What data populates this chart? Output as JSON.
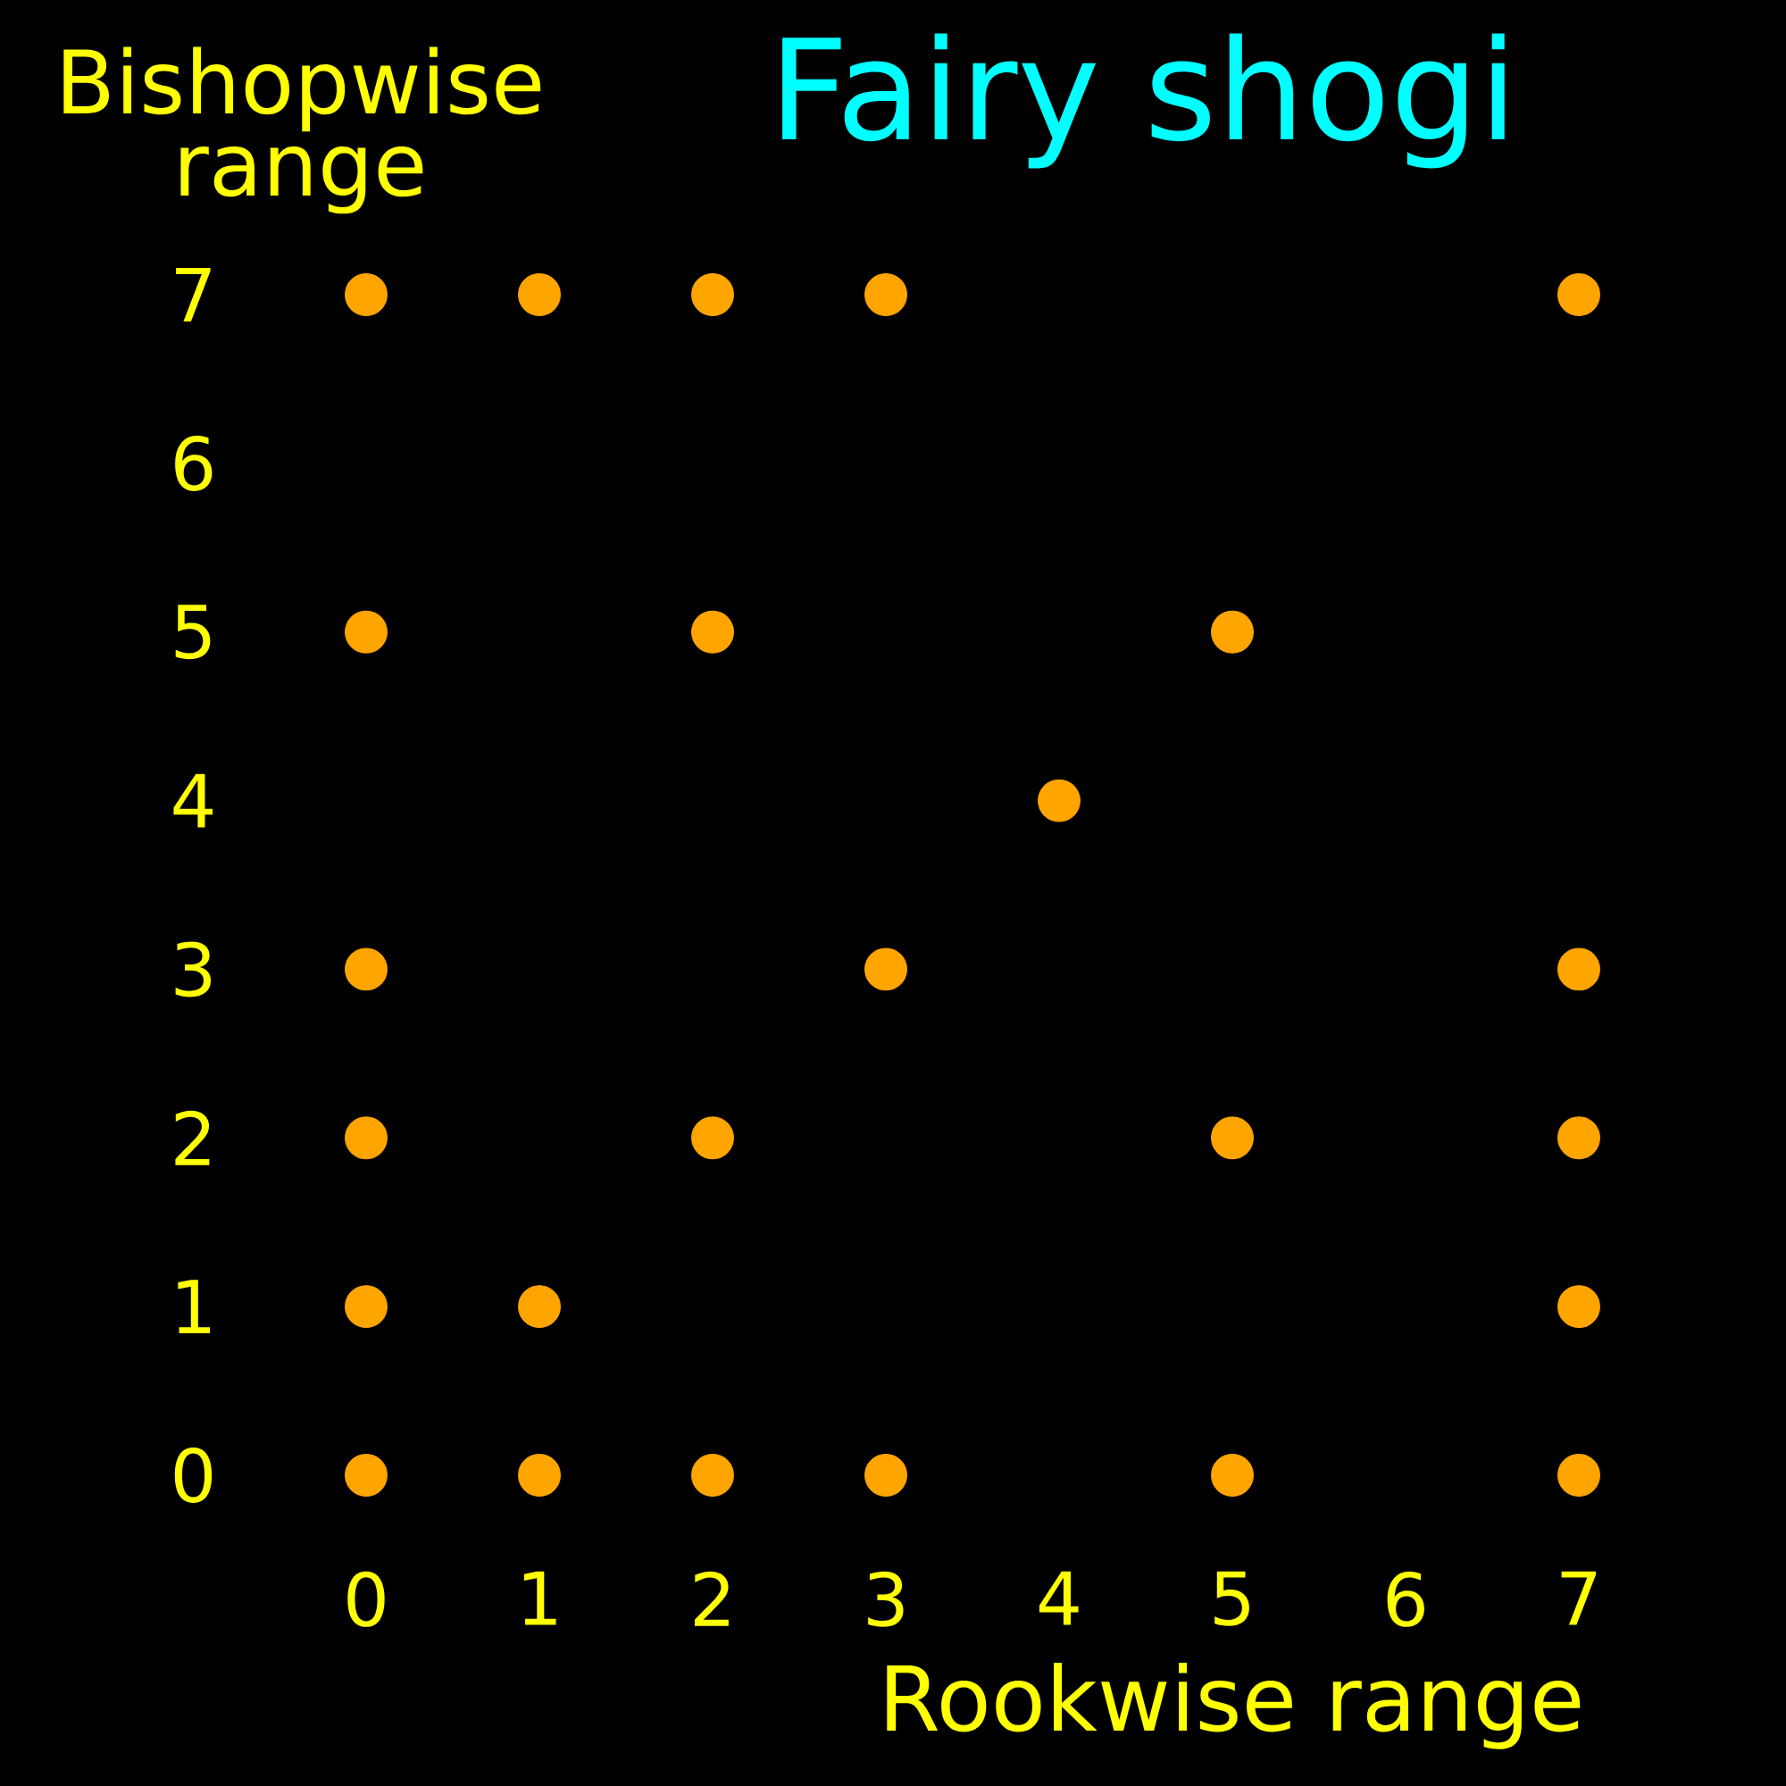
{
  "chart_data": {
    "type": "scatter",
    "title": "Fairy shogi",
    "xlabel": "Rookwise range",
    "ylabel": "Bishopwise range",
    "series": [
      {
        "color": "#ffa500",
        "x": [
          0,
          1,
          2,
          3,
          7,
          0,
          2,
          5,
          4,
          0,
          3,
          7,
          0,
          2,
          5,
          7,
          0,
          1,
          7,
          0,
          1,
          2,
          3,
          5,
          7
        ],
        "values": [
          7,
          7,
          7,
          7,
          7,
          5,
          5,
          5,
          4,
          3,
          3,
          3,
          2,
          2,
          2,
          2,
          1,
          1,
          1,
          0,
          0,
          0,
          0,
          0,
          0
        ]
      }
    ],
    "xlim": [
      0,
      7
    ],
    "ylim": [
      0,
      7
    ],
    "xticks": [
      0,
      1,
      2,
      3,
      4,
      5,
      6,
      7
    ],
    "yticks": [
      0,
      1,
      2,
      3,
      4,
      5,
      6,
      7
    ],
    "marker": "circle"
  }
}
